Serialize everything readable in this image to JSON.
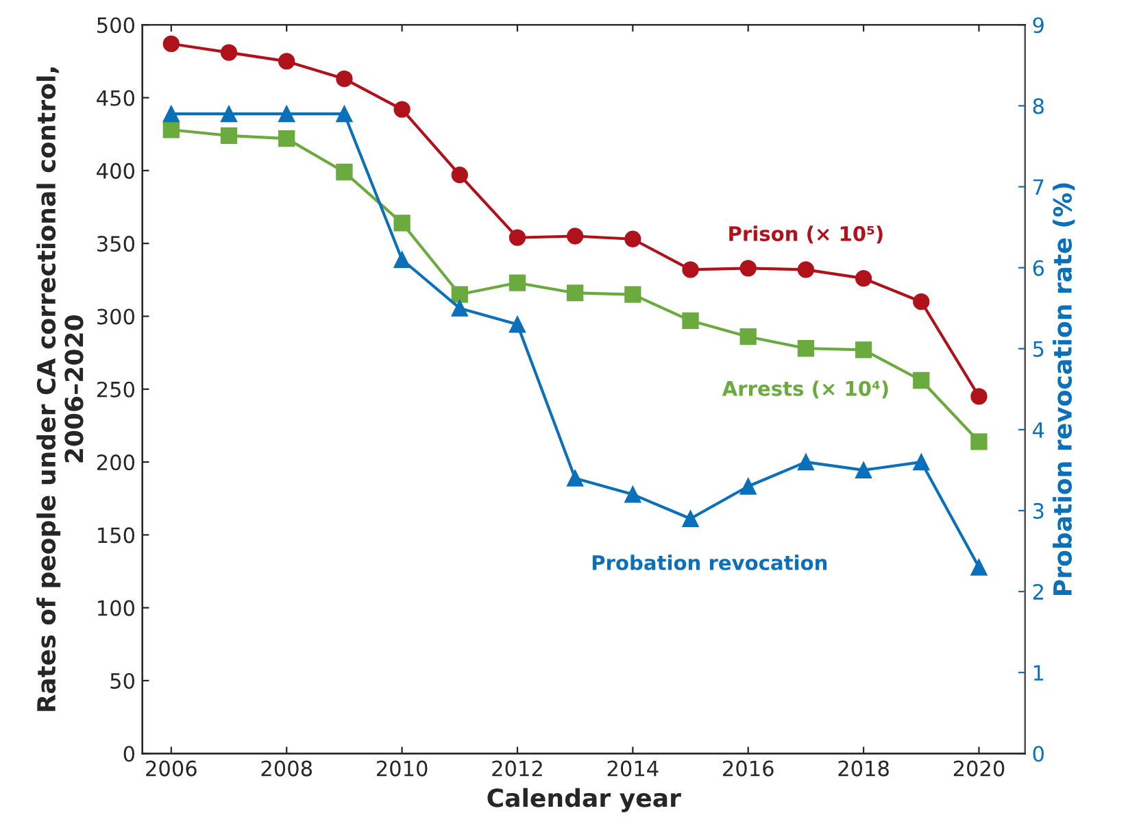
{
  "chart_data": {
    "type": "line",
    "xlabel": "Calendar year",
    "ylabel": "Rates of people under CA correctional control,\n2006–2020",
    "y2label": "Probation revocation rate (%)",
    "x": [
      2006,
      2007,
      2008,
      2009,
      2010,
      2011,
      2012,
      2013,
      2014,
      2015,
      2016,
      2017,
      2018,
      2019,
      2020
    ],
    "series": [
      {
        "name": "Prison (× 10⁵)",
        "color": "#b0121b",
        "marker": "circle",
        "values": [
          487,
          481,
          475,
          463,
          442,
          397,
          354,
          355,
          353,
          332,
          333,
          332,
          326,
          310,
          245
        ]
      },
      {
        "name": "Arrests (× 10⁴)",
        "color": "#6aaa3e",
        "marker": "square",
        "values": [
          428,
          424,
          422,
          399,
          364,
          315,
          323,
          316,
          315,
          297,
          286,
          278,
          277,
          256,
          214
        ]
      },
      {
        "name": "Probation revocation",
        "color": "#0a70b9",
        "marker": "triangle",
        "axis": "y2",
        "values": [
          7.9,
          7.9,
          7.9,
          7.9,
          6.1,
          5.5,
          5.3,
          3.4,
          3.2,
          2.9,
          3.3,
          3.6,
          3.5,
          3.6,
          2.3
        ]
      }
    ],
    "xlim": [
      2005.5,
      2020.8
    ],
    "xticks": [
      2006,
      2008,
      2010,
      2012,
      2014,
      2016,
      2018,
      2020
    ],
    "ylim": [
      0,
      500
    ],
    "yticks": [
      0,
      50,
      100,
      150,
      200,
      250,
      300,
      350,
      400,
      450,
      500
    ],
    "y2lim": [
      0,
      9
    ],
    "y2ticks": [
      0,
      1,
      2,
      3,
      4,
      5,
      6,
      7,
      8,
      9
    ],
    "grid": false,
    "legend": false,
    "line_style": "solid"
  }
}
